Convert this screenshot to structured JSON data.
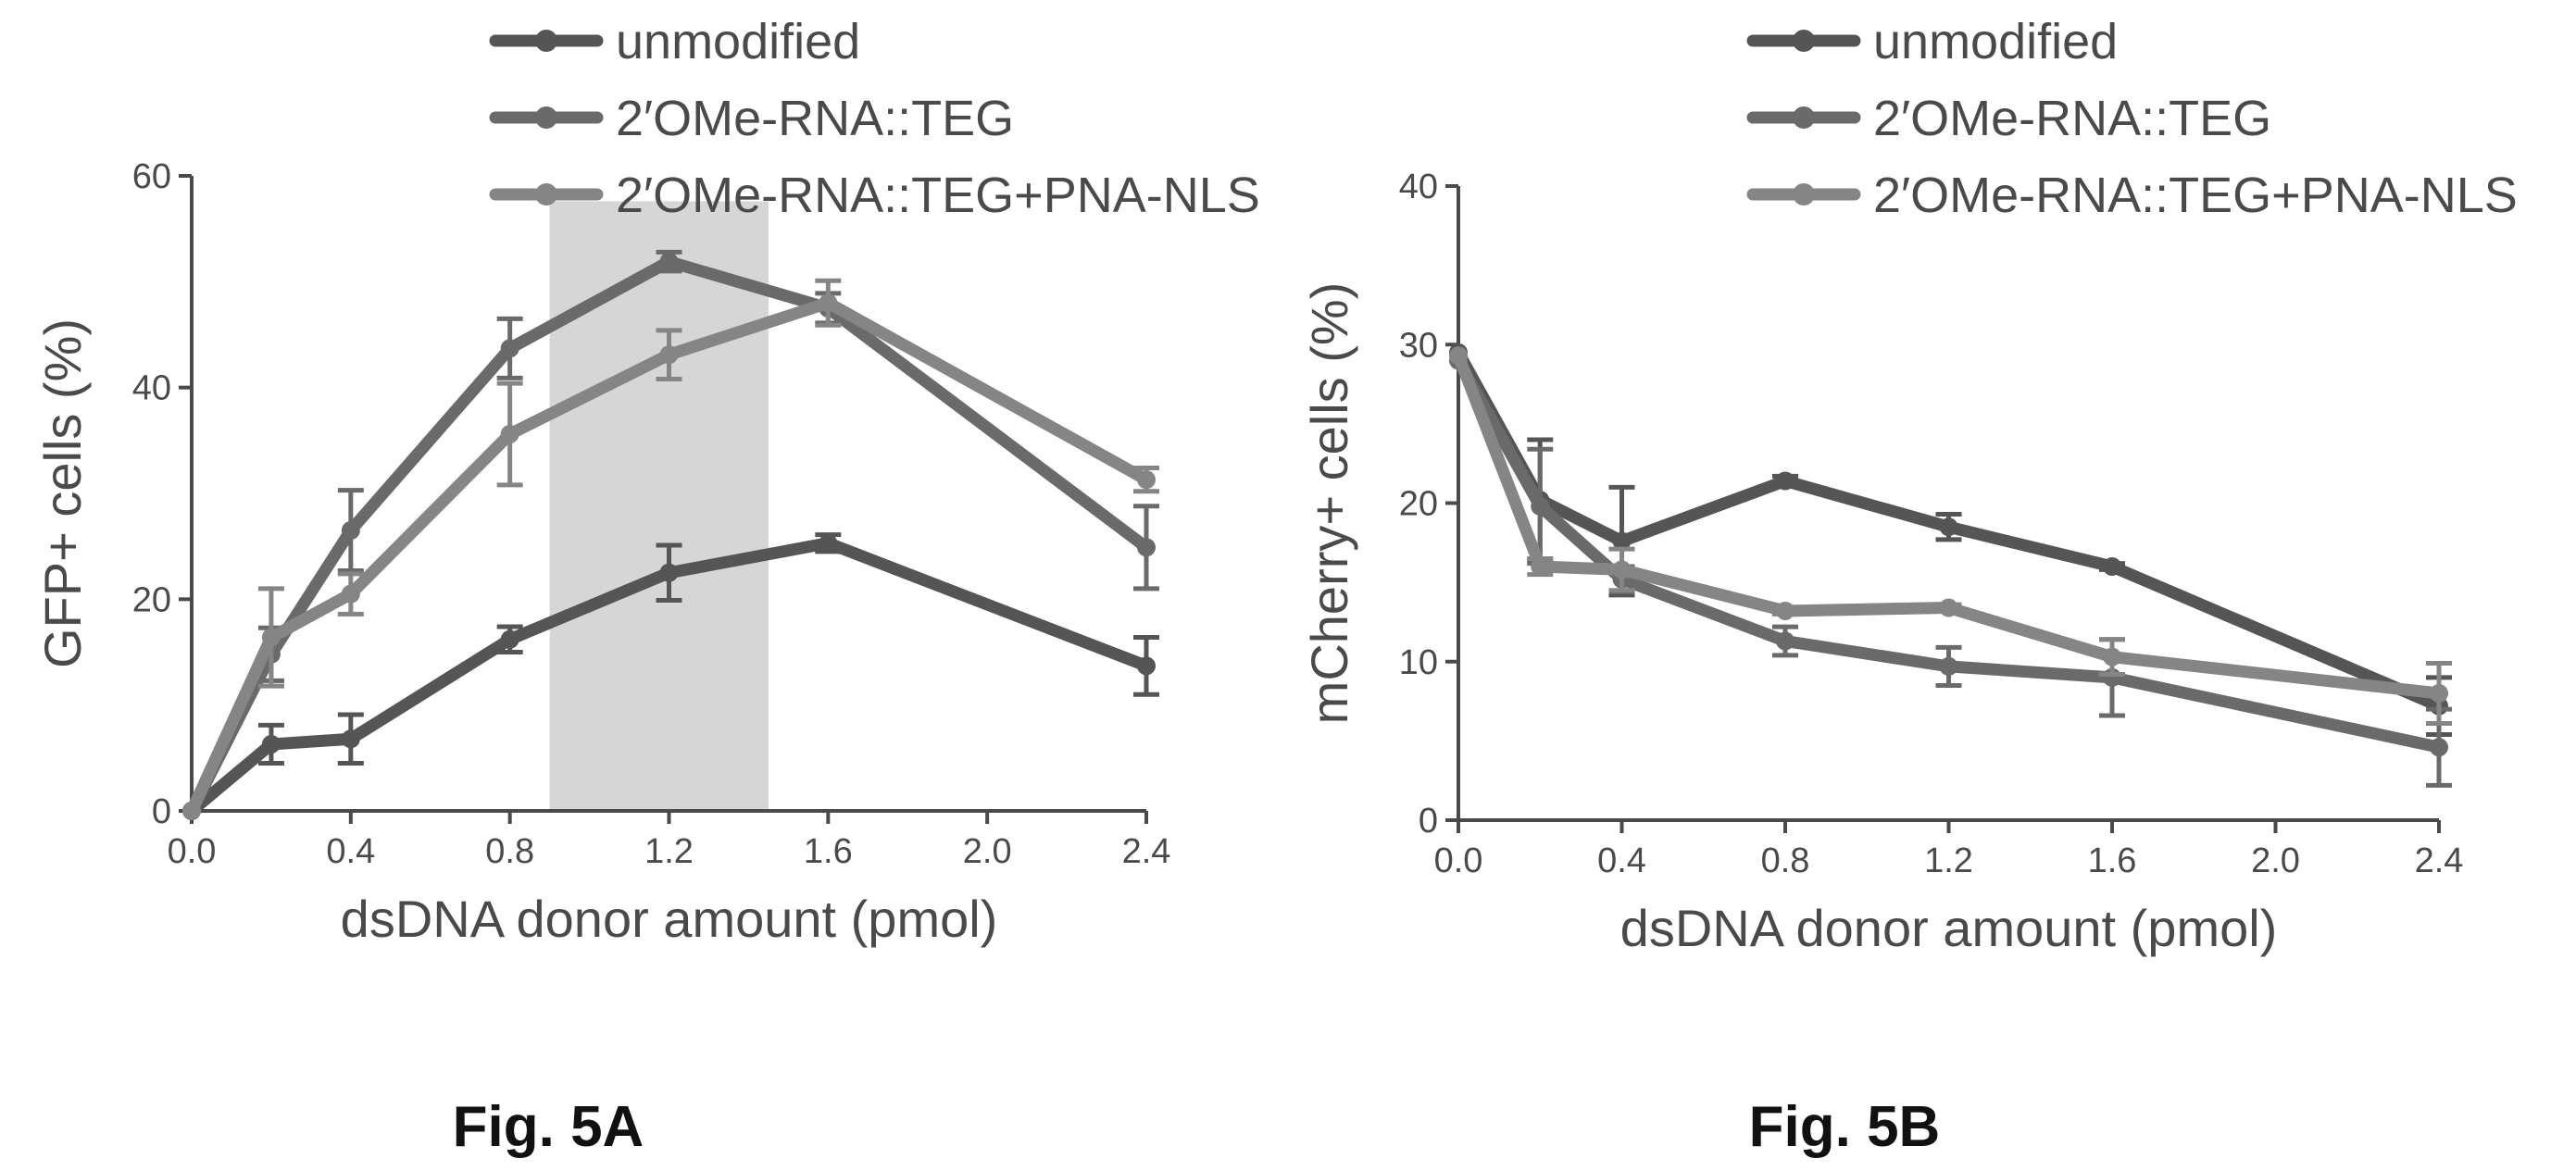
{
  "colors": {
    "unmodified": "#555555",
    "teg": "#6a6a6a",
    "teg_pna": "#858585",
    "axis": "#4a4a4a",
    "shade": "#d6d6d6"
  },
  "chart_data": [
    {
      "type": "line",
      "caption": "Fig. 5A",
      "xlabel": "dsDNA donor amount (pmol)",
      "ylabel": "GFP+ cells (%)",
      "xlim": [
        0,
        2.4
      ],
      "ylim": [
        0,
        60
      ],
      "xticks": [
        0.0,
        0.4,
        0.8,
        1.2,
        1.6,
        2.0,
        2.4
      ],
      "xtick_labels": [
        "0.0",
        "0.4",
        "0.8",
        "1.2",
        "1.6",
        "2.0",
        "2.4"
      ],
      "yticks": [
        0,
        20,
        40,
        60
      ],
      "ytick_labels": [
        "0",
        "20",
        "40",
        "60"
      ],
      "legend_position": "top",
      "shaded_region": [
        0.9,
        1.45
      ],
      "series": [
        {
          "name": "unmodified",
          "color": "#555555",
          "x": [
            0.0,
            0.2,
            0.4,
            0.8,
            1.2,
            1.6,
            2.4
          ],
          "y": [
            0,
            6.3,
            6.8,
            16.2,
            22.5,
            25.3,
            13.7
          ],
          "err": [
            0,
            1.8,
            2.3,
            1.2,
            2.6,
            0.8,
            2.7
          ]
        },
        {
          "name": "2′OMe-RNA::TEG",
          "color": "#6a6a6a",
          "x": [
            0.0,
            0.2,
            0.4,
            0.8,
            1.2,
            1.6,
            2.4
          ],
          "y": [
            0,
            14.8,
            26.5,
            43.7,
            51.9,
            47.5,
            24.9
          ],
          "err": [
            0,
            2.5,
            3.8,
            2.8,
            0.9,
            1.4,
            3.9
          ]
        },
        {
          "name": "2′OMe-RNA::TEG+PNA-NLS",
          "color": "#858585",
          "x": [
            0.0,
            0.2,
            0.4,
            0.8,
            1.2,
            1.6,
            2.4
          ],
          "y": [
            0,
            16.4,
            20.5,
            35.6,
            43.1,
            48.0,
            31.3
          ],
          "err": [
            0,
            4.6,
            1.9,
            4.8,
            2.3,
            2.1,
            1.1
          ]
        }
      ]
    },
    {
      "type": "line",
      "caption": "Fig. 5B",
      "xlabel": "dsDNA donor amount (pmol)",
      "ylabel": "mCherry+ cells (%)",
      "xlim": [
        0,
        2.4
      ],
      "ylim": [
        0,
        40
      ],
      "xticks": [
        0.0,
        0.4,
        0.8,
        1.2,
        1.6,
        2.0,
        2.4
      ],
      "xtick_labels": [
        "0.0",
        "0.4",
        "0.8",
        "1.2",
        "1.6",
        "2.0",
        "2.4"
      ],
      "yticks": [
        0,
        10,
        20,
        30,
        40
      ],
      "ytick_labels": [
        "0",
        "10",
        "20",
        "30",
        "40"
      ],
      "legend_position": "top",
      "series": [
        {
          "name": "unmodified",
          "color": "#555555",
          "x": [
            0.0,
            0.2,
            0.4,
            0.8,
            1.2,
            1.6,
            2.4
          ],
          "y": [
            29.5,
            20.2,
            17.6,
            21.4,
            18.5,
            16.0,
            7.2
          ],
          "err": [
            0,
            3.8,
            3.4,
            0.3,
            0.8,
            0.2,
            1.8
          ]
        },
        {
          "name": "2′OMe-RNA::TEG",
          "color": "#6a6a6a",
          "x": [
            0.0,
            0.2,
            0.4,
            0.8,
            1.2,
            1.6,
            2.4
          ],
          "y": [
            29.0,
            19.8,
            15.2,
            11.3,
            9.7,
            9.0,
            4.6
          ],
          "err": [
            0,
            3.6,
            0.8,
            0.9,
            1.2,
            2.4,
            2.4
          ]
        },
        {
          "name": "2′OMe-RNA::TEG+PNA-NLS",
          "color": "#858585",
          "x": [
            0.0,
            0.2,
            0.4,
            0.8,
            1.2,
            1.6,
            2.4
          ],
          "y": [
            29.3,
            16.0,
            15.8,
            13.2,
            13.4,
            10.3,
            8.0
          ],
          "err": [
            0,
            0.5,
            1.3,
            0.2,
            0.2,
            1.1,
            1.9
          ]
        }
      ]
    }
  ]
}
